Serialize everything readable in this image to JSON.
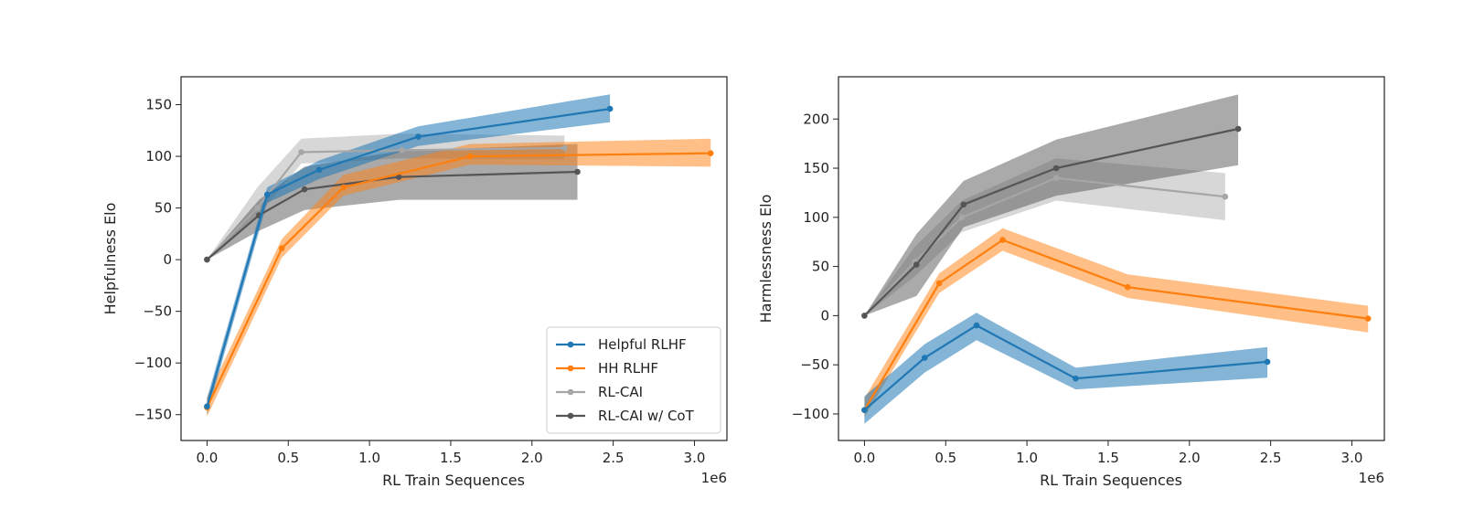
{
  "colors": {
    "helpful": "#1f77b4",
    "hh": "#ff7f0e",
    "rlcai": "#a6a6a6",
    "cot": "#555555"
  },
  "chart_data": [
    {
      "type": "line",
      "id": "left",
      "xlabel": "RL Train Sequences",
      "ylabel": "Helpfulness Elo",
      "x_offset_label": "1e6",
      "xlim": [
        -0.16,
        3.2
      ],
      "ylim": [
        -175,
        177
      ],
      "xticks": [
        0.0,
        0.5,
        1.0,
        1.5,
        2.0,
        2.5,
        3.0
      ],
      "xtick_labels": [
        "0.0",
        "0.5",
        "1.0",
        "1.5",
        "2.0",
        "2.5",
        "3.0"
      ],
      "yticks": [
        -150,
        -100,
        -50,
        0,
        50,
        100,
        150
      ],
      "ytick_labels": [
        "−150",
        "−100",
        "−50",
        "0",
        "50",
        "100",
        "150"
      ],
      "legend": {
        "position": "lower-right",
        "entries": [
          "Helpful RLHF",
          "HH RLHF",
          "RL-CAI",
          "RL-CAI w/ CoT"
        ]
      },
      "series": [
        {
          "name": "RL-CAI",
          "color_key": "rlcai",
          "band_opacity": 0.45,
          "x": [
            0,
            0.31,
            0.58,
            1.2,
            2.2
          ],
          "y": [
            0,
            50,
            104,
            106,
            108
          ],
          "lower": [
            0,
            42,
            93,
            98,
            97
          ],
          "upper": [
            0,
            70,
            117,
            122,
            120
          ]
        },
        {
          "name": "RL-CAI w/ CoT",
          "color_key": "cot",
          "band_opacity": 0.5,
          "x": [
            0,
            0.32,
            0.6,
            1.18,
            2.28
          ],
          "y": [
            0,
            43,
            68,
            80,
            85
          ],
          "lower": [
            0,
            28,
            48,
            58,
            58
          ],
          "upper": [
            0,
            58,
            90,
            105,
            112
          ]
        },
        {
          "name": "HH RLHF",
          "color_key": "hh",
          "band_opacity": 0.5,
          "x": [
            0,
            0.46,
            0.84,
            1.62,
            3.1
          ],
          "y": [
            -143,
            11,
            70,
            100,
            103
          ],
          "lower": [
            -152,
            2,
            62,
            92,
            90
          ],
          "upper": [
            -133,
            20,
            82,
            112,
            117
          ]
        },
        {
          "name": "Helpful RLHF",
          "color_key": "helpful",
          "band_opacity": 0.55,
          "x": [
            0,
            0.37,
            0.69,
            1.3,
            2.48
          ],
          "y": [
            -142,
            63,
            87,
            119,
            146
          ],
          "lower": [
            -150,
            55,
            78,
            110,
            133
          ],
          "upper": [
            -134,
            70,
            96,
            129,
            160
          ]
        }
      ]
    },
    {
      "type": "line",
      "id": "right",
      "xlabel": "RL Train Sequences",
      "ylabel": "Harmlessness Elo",
      "x_offset_label": "1e6",
      "xlim": [
        -0.16,
        3.2
      ],
      "ylim": [
        -127,
        243
      ],
      "xticks": [
        0.0,
        0.5,
        1.0,
        1.5,
        2.0,
        2.5,
        3.0
      ],
      "xtick_labels": [
        "0.0",
        "0.5",
        "1.0",
        "1.5",
        "2.0",
        "2.5",
        "3.0"
      ],
      "yticks": [
        -100,
        -50,
        0,
        50,
        100,
        150,
        200
      ],
      "ytick_labels": [
        "−100",
        "−50",
        "0",
        "50",
        "100",
        "150",
        "200"
      ],
      "series": [
        {
          "name": "RL-CAI",
          "color_key": "rlcai",
          "band_opacity": 0.45,
          "x": [
            0,
            0.31,
            0.6,
            1.18,
            2.22
          ],
          "y": [
            0,
            55,
            100,
            140,
            121
          ],
          "lower": [
            0,
            40,
            85,
            117,
            97
          ],
          "upper": [
            0,
            70,
            117,
            160,
            145
          ]
        },
        {
          "name": "RL-CAI w/ CoT",
          "color_key": "cot",
          "band_opacity": 0.5,
          "x": [
            0,
            0.32,
            0.61,
            1.18,
            2.3
          ],
          "y": [
            0,
            52,
            113,
            150,
            190
          ],
          "lower": [
            0,
            20,
            90,
            122,
            153
          ],
          "upper": [
            0,
            83,
            137,
            179,
            225
          ]
        },
        {
          "name": "HH RLHF",
          "color_key": "hh",
          "band_opacity": 0.5,
          "x": [
            0,
            0.46,
            0.85,
            1.62,
            3.1
          ],
          "y": [
            -96,
            33,
            77,
            29,
            -3
          ],
          "lower": [
            -103,
            23,
            66,
            18,
            -17
          ],
          "upper": [
            -84,
            43,
            89,
            42,
            10
          ]
        },
        {
          "name": "Helpful RLHF",
          "color_key": "helpful",
          "band_opacity": 0.55,
          "x": [
            0,
            0.37,
            0.69,
            1.3,
            2.48
          ],
          "y": [
            -96,
            -43,
            -10,
            -64,
            -47
          ],
          "lower": [
            -110,
            -58,
            -25,
            -75,
            -63
          ],
          "upper": [
            -82,
            -29,
            3,
            -53,
            -32
          ]
        }
      ]
    }
  ]
}
